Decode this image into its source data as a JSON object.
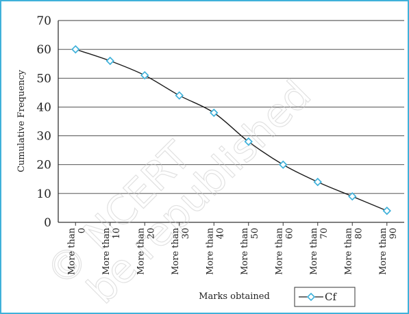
{
  "chart_data": {
    "type": "line",
    "title": "",
    "xlabel": "Marks obtained",
    "ylabel": "Cumulative Frequency",
    "ylim": [
      0,
      70
    ],
    "yticks": [
      0,
      10,
      20,
      30,
      40,
      50,
      60,
      70
    ],
    "grid": true,
    "legend_position": "bottom-right",
    "categories": [
      [
        "More than",
        "0"
      ],
      [
        "More than",
        "10"
      ],
      [
        "More than",
        "20"
      ],
      [
        "More than",
        "30"
      ],
      [
        "More than",
        "40"
      ],
      [
        "More than",
        "50"
      ],
      [
        "More than",
        "60"
      ],
      [
        "More than",
        "70"
      ],
      [
        "More than",
        "80"
      ],
      [
        "More than",
        "90"
      ]
    ],
    "series": [
      {
        "name": "Cf",
        "values": [
          60,
          56,
          51,
          44,
          38,
          28,
          20,
          14,
          9,
          4
        ],
        "color": "#1a1a1a",
        "marker_color": "#3fb1da"
      }
    ]
  },
  "watermark": {
    "line1": "© NCERT",
    "line2": "be republished"
  }
}
